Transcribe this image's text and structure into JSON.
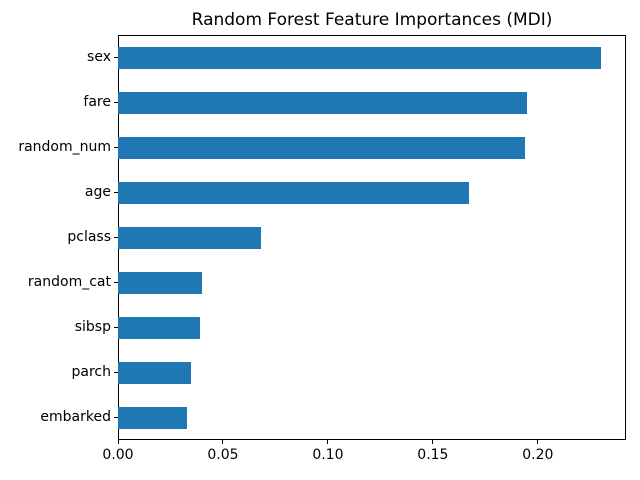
{
  "chart_data": {
    "type": "bar",
    "orientation": "horizontal",
    "title": "Random Forest Feature Importances (MDI)",
    "categories": [
      "sex",
      "fare",
      "random_num",
      "age",
      "pclass",
      "random_cat",
      "sibsp",
      "parch",
      "embarked"
    ],
    "values": [
      0.23,
      0.195,
      0.194,
      0.167,
      0.068,
      0.04,
      0.039,
      0.035,
      0.033
    ],
    "xlabel": "",
    "ylabel": "",
    "xlim": [
      0,
      0.242
    ],
    "xticks": [
      0.0,
      0.05,
      0.1,
      0.15,
      0.2
    ],
    "xtick_labels": [
      "0.00",
      "0.05",
      "0.10",
      "0.15",
      "0.20"
    ],
    "bar_color": "#1f77b4",
    "text_color": "#000000",
    "background_color": "#ffffff",
    "grid": false,
    "legend": false
  }
}
